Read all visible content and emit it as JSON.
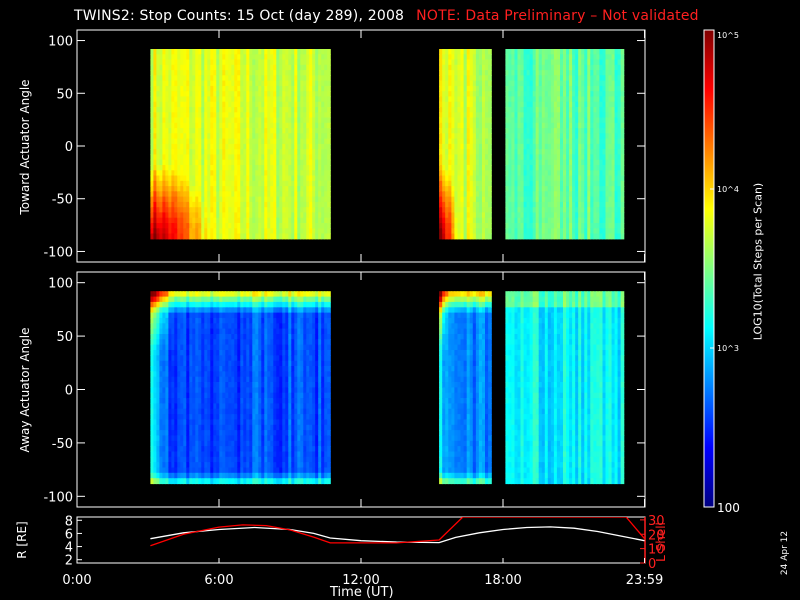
{
  "title": {
    "main": "TWINS2: Stop Counts: 15 Oct (day 289), 2008",
    "note": "NOTE: Data Preliminary – Not validated"
  },
  "colorbar": {
    "label": "LOG10(Total Steps per Scan)",
    "ticks": [
      "10^5",
      "10^4",
      "10^3",
      "100"
    ],
    "range": [
      100,
      100000
    ],
    "colors": [
      "#800000",
      "#ff0000",
      "#ff8000",
      "#ffff00",
      "#80ff80",
      "#00ffff",
      "#0080ff",
      "#0000ff",
      "#000080"
    ]
  },
  "x_axis": {
    "label": "Time (UT)",
    "ticks": [
      "0:00",
      "6:00",
      "12:00",
      "18:00",
      "23:59"
    ],
    "tick_hours": [
      0,
      6,
      12,
      18,
      23.98
    ]
  },
  "date_stamp": "24 Apr 12",
  "chart_data": [
    {
      "type": "heatmap",
      "name": "toward",
      "ylabel": "Toward Actuator Angle",
      "ylim": [
        -110,
        110
      ],
      "yticks": [
        100,
        50,
        0,
        -50,
        -100
      ],
      "y_extent": [
        -88,
        92
      ],
      "segments": [
        {
          "start": 3.1,
          "end": 10.7,
          "base_log": 3.7,
          "edge": "low-start"
        },
        {
          "start": 15.3,
          "end": 17.5,
          "base_log": 3.7,
          "edge": "low-start"
        },
        {
          "start": 18.1,
          "end": 23.1,
          "base_log": 3.4,
          "edge": "none"
        }
      ]
    },
    {
      "type": "heatmap",
      "name": "away",
      "ylabel": "Away Actuator Angle",
      "ylim": [
        -110,
        110
      ],
      "yticks": [
        100,
        50,
        0,
        -50,
        -100
      ],
      "y_extent": [
        -88,
        92
      ],
      "segments": [
        {
          "start": 3.1,
          "end": 10.7,
          "base_log": 2.6,
          "edge": "high-top"
        },
        {
          "start": 15.3,
          "end": 17.5,
          "base_log": 2.8,
          "edge": "high-top"
        },
        {
          "start": 18.1,
          "end": 23.1,
          "base_log": 3.1,
          "edge": "none"
        }
      ]
    },
    {
      "type": "line",
      "name": "orbit",
      "ylabel_left": "R [RE]",
      "ylabel_right": "L Shell",
      "left_ticks": [
        8,
        6,
        4,
        2
      ],
      "right_ticks": [
        30,
        20,
        10,
        0
      ],
      "left_ylim": [
        1.5,
        8.5
      ],
      "right_ylim": [
        0,
        32
      ],
      "series": [
        {
          "name": "R",
          "axis": "left",
          "color": "#ffffff",
          "x": [
            3.1,
            4.5,
            6,
            7.5,
            9,
            10,
            10.7,
            12,
            13.5,
            15.3,
            16,
            17,
            18,
            19,
            20,
            21,
            22,
            23,
            23.98
          ],
          "y": [
            5.2,
            6.1,
            6.6,
            6.9,
            6.6,
            6.0,
            5.3,
            4.9,
            4.7,
            4.6,
            5.4,
            6.1,
            6.6,
            6.9,
            7.0,
            6.8,
            6.3,
            5.6,
            4.9
          ]
        },
        {
          "name": "L Shell",
          "axis": "right",
          "color": "#ff0000",
          "x": [
            3.1,
            4.5,
            6,
            7,
            8,
            9,
            10,
            10.7,
            12,
            13.5,
            15.3,
            16.3,
            23.2,
            23.98
          ],
          "y": [
            12,
            20,
            25,
            26.5,
            26,
            23,
            18,
            14,
            14,
            14,
            16,
            32,
            32,
            17
          ]
        }
      ]
    }
  ]
}
